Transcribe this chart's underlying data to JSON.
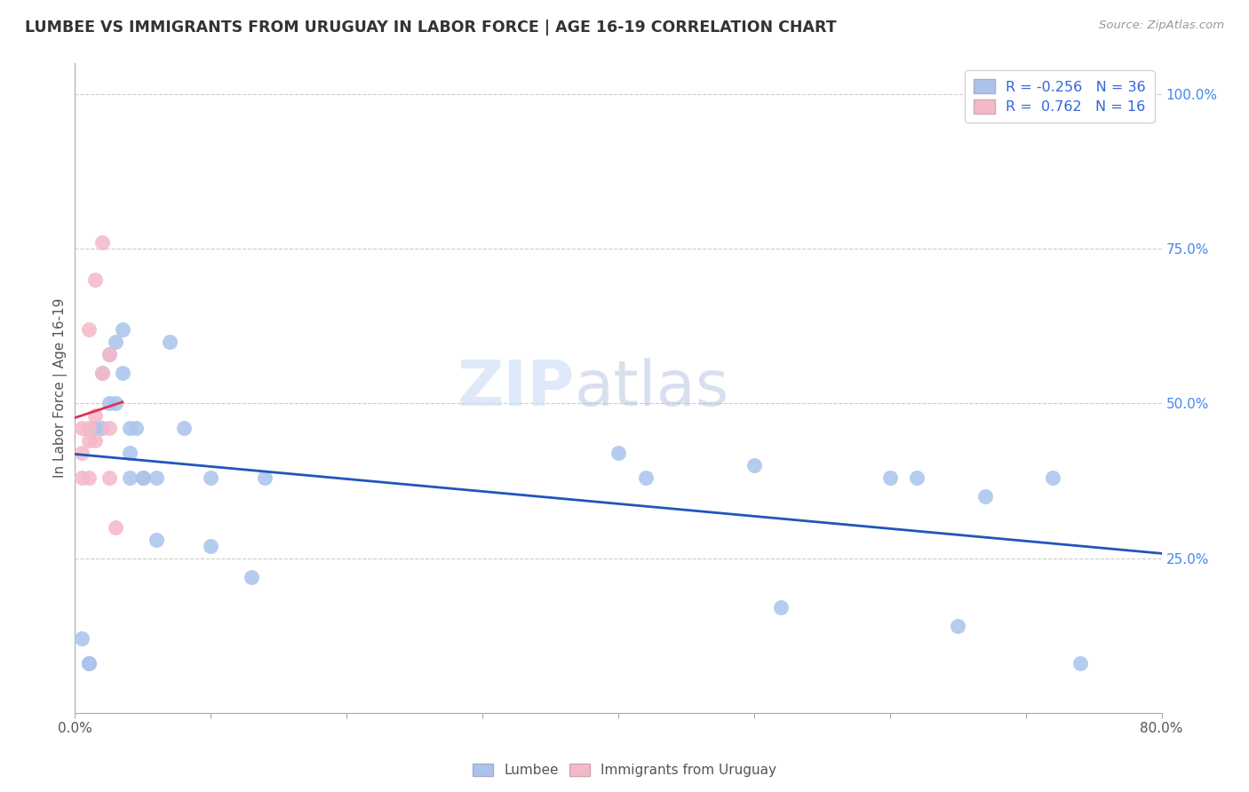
{
  "title": "LUMBEE VS IMMIGRANTS FROM URUGUAY IN LABOR FORCE | AGE 16-19 CORRELATION CHART",
  "source": "Source: ZipAtlas.com",
  "ylabel": "In Labor Force | Age 16-19",
  "xlim": [
    0.0,
    0.8
  ],
  "ylim": [
    0.0,
    1.05
  ],
  "blue_R": -0.256,
  "blue_N": 36,
  "pink_R": 0.762,
  "pink_N": 16,
  "blue_color": "#aac4ec",
  "blue_line_color": "#2255bb",
  "pink_color": "#f5b8c8",
  "pink_line_color": "#dd3355",
  "watermark_zip": "ZIP",
  "watermark_atlas": "atlas",
  "background_color": "#ffffff",
  "blue_scatter_x": [
    0.005,
    0.01,
    0.01,
    0.015,
    0.02,
    0.02,
    0.025,
    0.025,
    0.03,
    0.03,
    0.035,
    0.035,
    0.04,
    0.04,
    0.04,
    0.045,
    0.05,
    0.05,
    0.06,
    0.06,
    0.07,
    0.08,
    0.1,
    0.1,
    0.13,
    0.14,
    0.4,
    0.42,
    0.5,
    0.52,
    0.6,
    0.62,
    0.65,
    0.67,
    0.72,
    0.74
  ],
  "blue_scatter_y": [
    0.12,
    0.08,
    0.08,
    0.46,
    0.46,
    0.55,
    0.5,
    0.58,
    0.5,
    0.6,
    0.55,
    0.62,
    0.38,
    0.42,
    0.46,
    0.46,
    0.38,
    0.38,
    0.28,
    0.38,
    0.6,
    0.46,
    0.27,
    0.38,
    0.22,
    0.38,
    0.42,
    0.38,
    0.4,
    0.17,
    0.38,
    0.38,
    0.14,
    0.35,
    0.38,
    0.08
  ],
  "pink_scatter_x": [
    0.005,
    0.005,
    0.005,
    0.01,
    0.01,
    0.01,
    0.01,
    0.015,
    0.015,
    0.015,
    0.02,
    0.02,
    0.025,
    0.025,
    0.025,
    0.03
  ],
  "pink_scatter_y": [
    0.38,
    0.42,
    0.46,
    0.38,
    0.44,
    0.46,
    0.62,
    0.44,
    0.48,
    0.7,
    0.55,
    0.76,
    0.38,
    0.46,
    0.58,
    0.3
  ],
  "pink_line_x0": 0.0,
  "pink_line_x1": 0.035,
  "blue_line_x0": 0.0,
  "blue_line_x1": 0.8
}
